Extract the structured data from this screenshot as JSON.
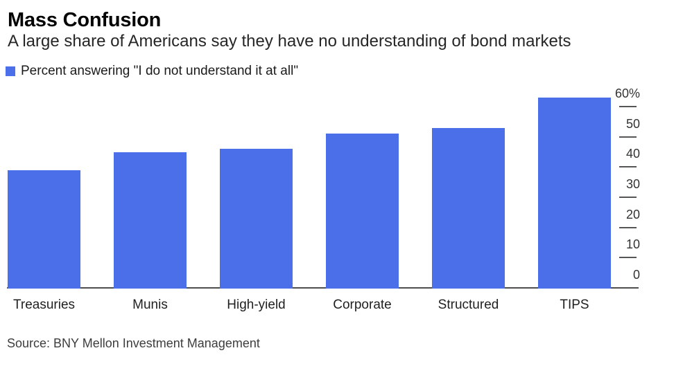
{
  "title": "Mass Confusion",
  "subtitle": "A large share of Americans say they have no understanding of bond markets",
  "legend": {
    "label": "Percent answering \"I do not understand it at all\"",
    "swatch_color": "#4a6fe8"
  },
  "source": "Source: BNY Mellon Investment Management",
  "chart_data": {
    "type": "bar",
    "title": "Mass Confusion",
    "subtitle": "A large share of Americans say they have no understanding of bond markets",
    "series_name": "Percent answering \"I do not understand it at all\"",
    "categories": [
      "Treasuries",
      "Munis",
      "High-yield",
      "Corporate",
      "Structured",
      "TIPS"
    ],
    "values": [
      39,
      45,
      46,
      51,
      53,
      63
    ],
    "unit": "%",
    "xlabel": "",
    "ylabel": "Percent",
    "ylim": [
      0,
      60
    ],
    "yticks": [
      0,
      10,
      20,
      30,
      40,
      50,
      60
    ],
    "ytick_top_label": "60%",
    "axis_side": "right",
    "grid": false,
    "bar_color": "#4a6fe8",
    "axis_color": "#4d4d4d",
    "source": "Source: BNY Mellon Investment Management"
  }
}
